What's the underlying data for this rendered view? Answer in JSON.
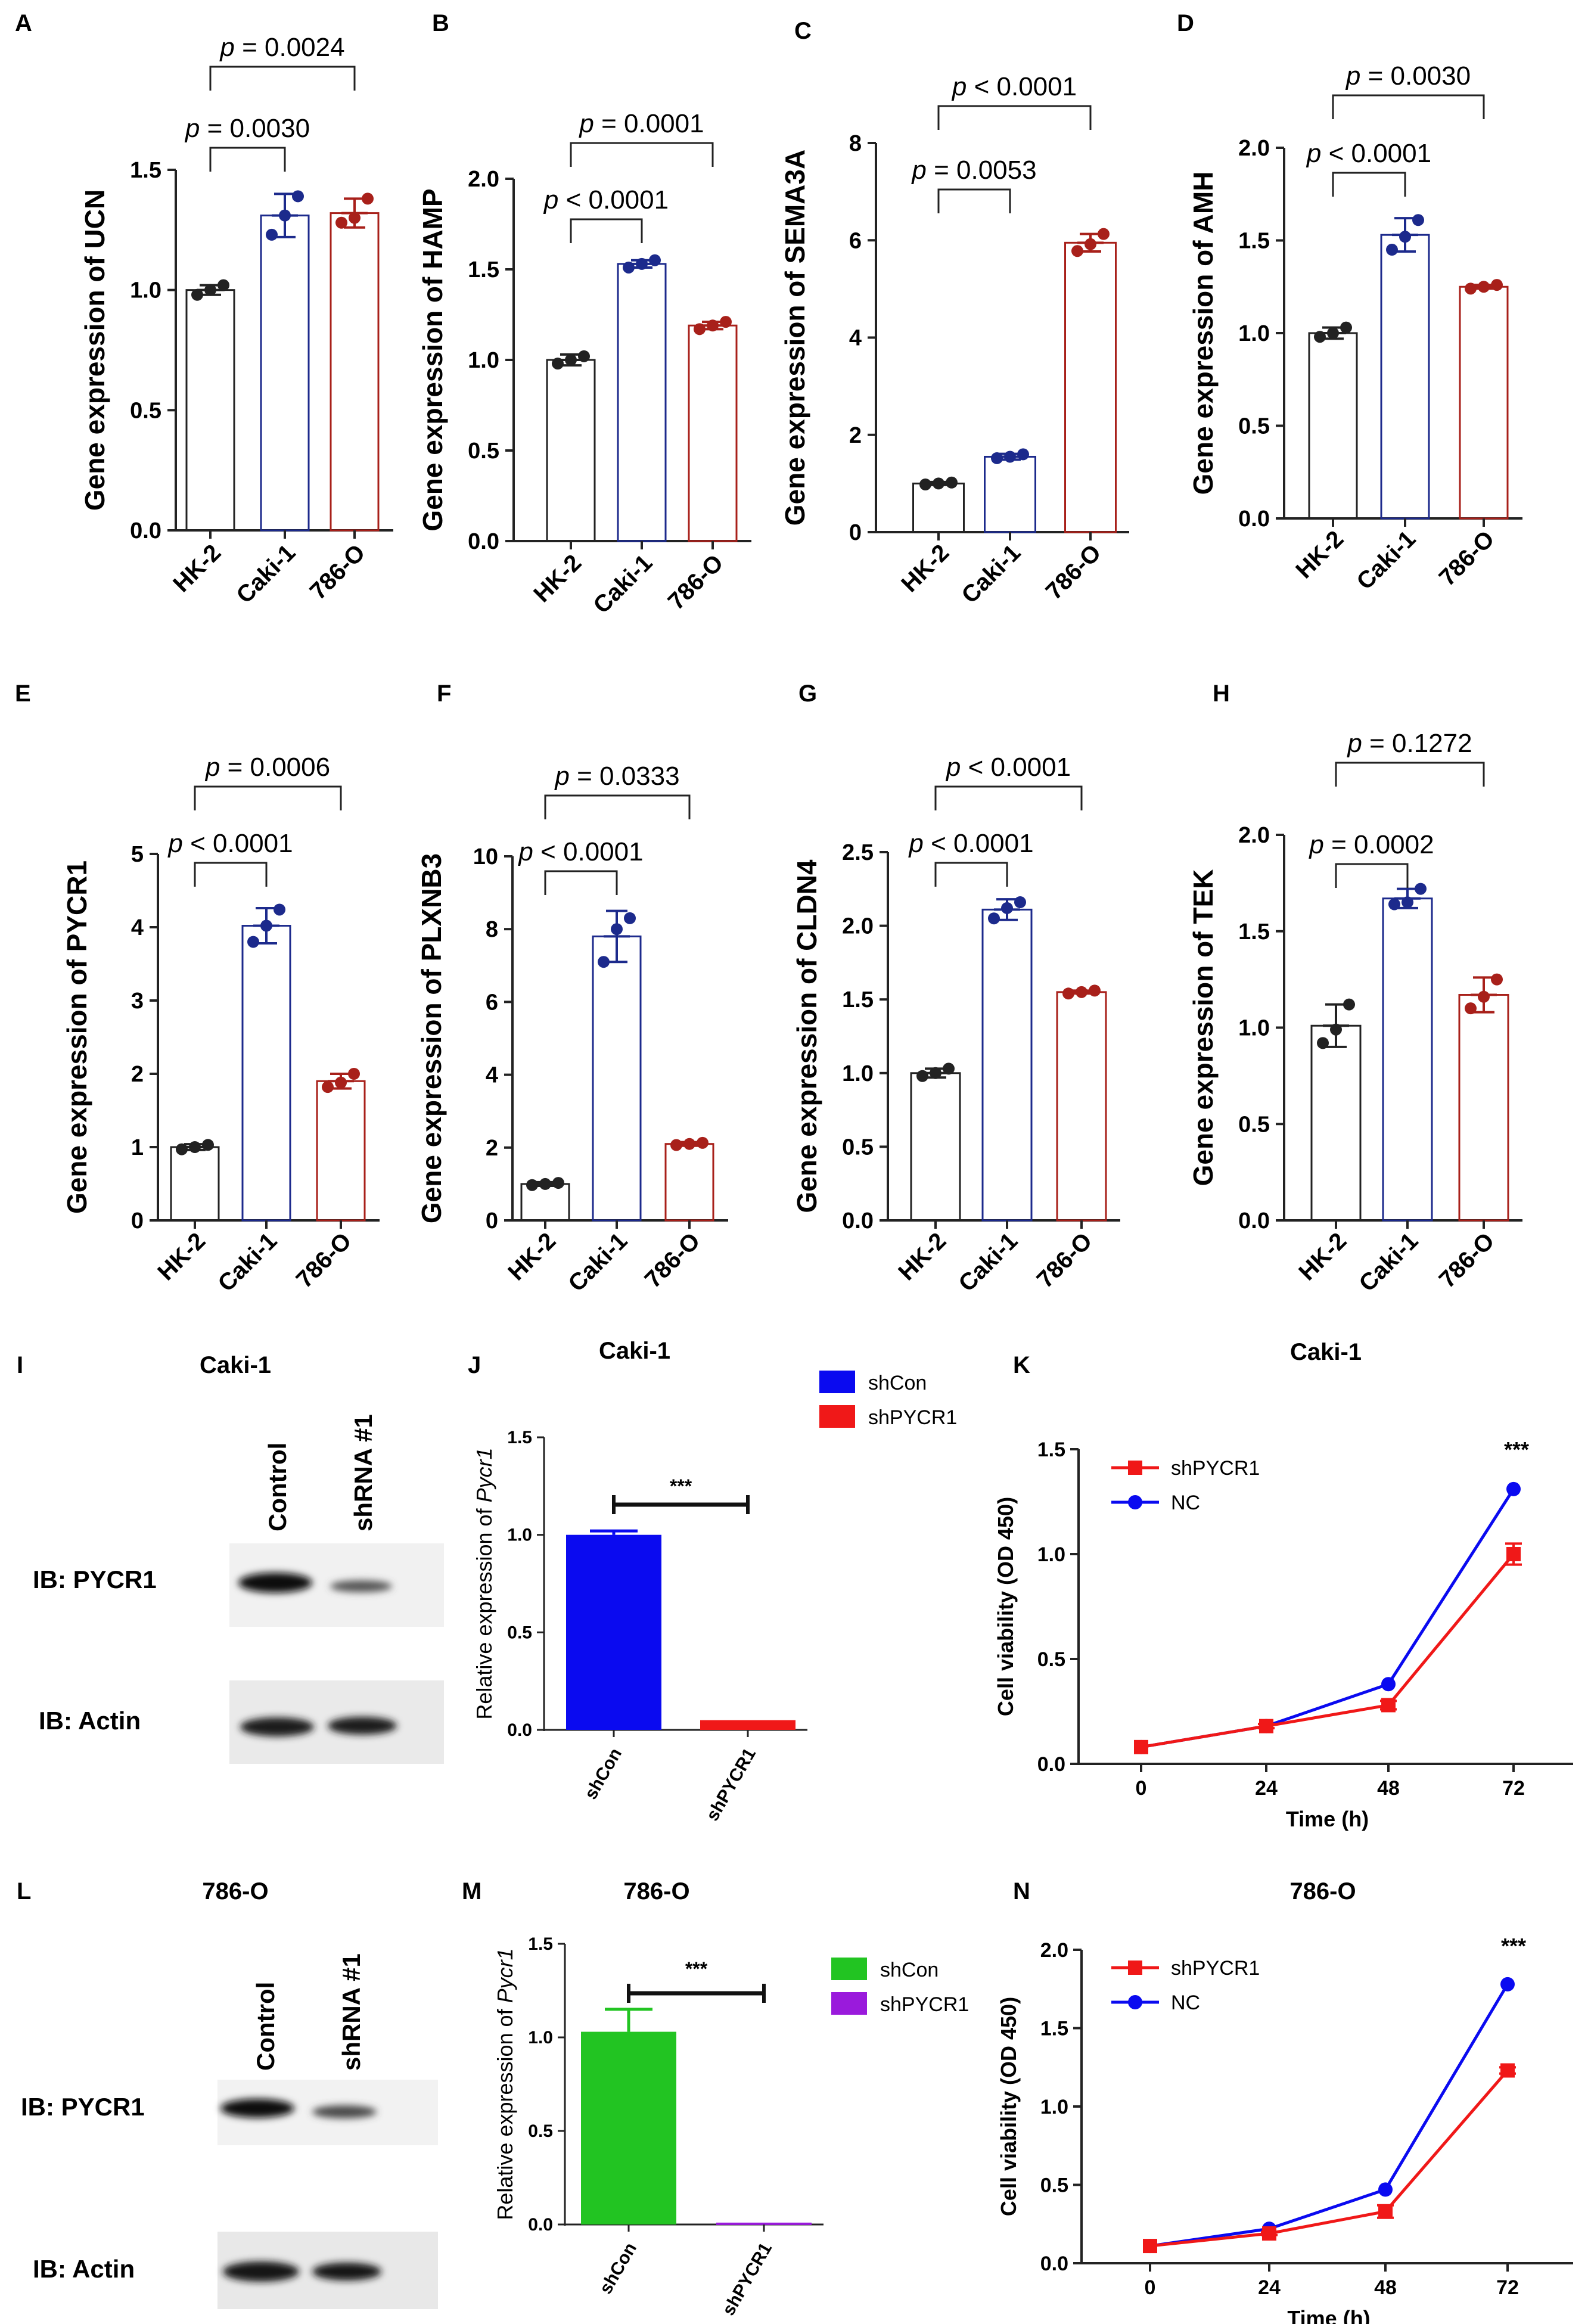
{
  "colors": {
    "HK-2": "#222222",
    "Caki-1": "#1c2a8c",
    "786-O": "#a8201a",
    "blue": "#0a0af0",
    "red": "#f01818",
    "green": "#22c422",
    "purple": "#9a1adc"
  },
  "bar_groups": [
    "HK-2",
    "Caki-1",
    "786-O"
  ],
  "chart_data": [
    {
      "panel": "A",
      "type": "bar",
      "ylabel": "Gene expression of UCN",
      "categories": [
        "HK-2",
        "Caki-1",
        "786-O"
      ],
      "values": [
        1.0,
        1.31,
        1.32
      ],
      "errors": [
        0.02,
        0.09,
        0.06
      ],
      "points": [
        [
          0.98,
          1.0,
          1.02
        ],
        [
          1.23,
          1.31,
          1.39
        ],
        [
          1.28,
          1.3,
          1.38
        ]
      ],
      "ylim": [
        0,
        1.5
      ],
      "yticks": [
        0.0,
        0.5,
        1.0,
        1.5
      ],
      "tick_labels": [
        "0.0",
        "0.5",
        "1.0",
        "1.5"
      ],
      "comparisons": [
        {
          "groups": [
            0,
            1
          ],
          "p_label": "p",
          "p_value": "= 0.0030"
        },
        {
          "groups": [
            0,
            2
          ],
          "p_label": "p",
          "p_value": "= 0.0024"
        }
      ]
    },
    {
      "panel": "B",
      "type": "bar",
      "ylabel": "Gene expression of HAMP",
      "categories": [
        "HK-2",
        "Caki-1",
        "786-O"
      ],
      "values": [
        1.0,
        1.53,
        1.19
      ],
      "errors": [
        0.03,
        0.02,
        0.02
      ],
      "points": [
        [
          0.98,
          1.0,
          1.02
        ],
        [
          1.51,
          1.53,
          1.55
        ],
        [
          1.17,
          1.19,
          1.21
        ]
      ],
      "ylim": [
        0,
        2.0
      ],
      "yticks": [
        0.0,
        0.5,
        1.0,
        1.5,
        2.0
      ],
      "tick_labels": [
        "0.0",
        "0.5",
        "1.0",
        "1.5",
        "2.0"
      ],
      "comparisons": [
        {
          "groups": [
            0,
            1
          ],
          "p_label": "p",
          "p_value": "< 0.0001"
        },
        {
          "groups": [
            0,
            2
          ],
          "p_label": "p",
          "p_value": "= 0.0001"
        }
      ]
    },
    {
      "panel": "C",
      "type": "bar",
      "ylabel": "Gene expression of SEMA3A",
      "categories": [
        "HK-2",
        "Caki-1",
        "786-O"
      ],
      "values": [
        1.0,
        1.55,
        5.95
      ],
      "errors": [
        0.03,
        0.06,
        0.18
      ],
      "points": [
        [
          0.98,
          1.0,
          1.02
        ],
        [
          1.52,
          1.55,
          1.6
        ],
        [
          5.78,
          5.92,
          6.13
        ]
      ],
      "ylim": [
        0,
        8
      ],
      "yticks": [
        0,
        2,
        4,
        6,
        8
      ],
      "tick_labels": [
        "0",
        "2",
        "4",
        "6",
        "8"
      ],
      "comparisons": [
        {
          "groups": [
            0,
            1
          ],
          "p_label": "p",
          "p_value": "= 0.0053"
        },
        {
          "groups": [
            0,
            2
          ],
          "p_label": "p",
          "p_value": "< 0.0001"
        }
      ]
    },
    {
      "panel": "D",
      "type": "bar",
      "ylabel": "Gene expression of AMH",
      "categories": [
        "HK-2",
        "Caki-1",
        "786-O"
      ],
      "values": [
        1.0,
        1.53,
        1.25
      ],
      "errors": [
        0.03,
        0.09,
        0.01
      ],
      "points": [
        [
          0.98,
          1.0,
          1.03
        ],
        [
          1.45,
          1.52,
          1.61
        ],
        [
          1.24,
          1.25,
          1.26
        ]
      ],
      "ylim": [
        0,
        2.0
      ],
      "yticks": [
        0.0,
        0.5,
        1.0,
        1.5,
        2.0
      ],
      "tick_labels": [
        "0.0",
        "0.5",
        "1.0",
        "1.5",
        "2.0"
      ],
      "comparisons": [
        {
          "groups": [
            0,
            1
          ],
          "p_label": "p",
          "p_value": "< 0.0001"
        },
        {
          "groups": [
            0,
            2
          ],
          "p_label": "p",
          "p_value": "= 0.0030"
        }
      ]
    },
    {
      "panel": "E",
      "type": "bar",
      "ylabel": "Gene expression of PYCR1",
      "categories": [
        "HK-2",
        "Caki-1",
        "786-O"
      ],
      "values": [
        1.0,
        4.02,
        1.9
      ],
      "errors": [
        0.04,
        0.24,
        0.1
      ],
      "points": [
        [
          0.97,
          1.0,
          1.03
        ],
        [
          3.8,
          4.02,
          4.24
        ],
        [
          1.82,
          1.88,
          2.0
        ]
      ],
      "ylim": [
        0,
        5
      ],
      "yticks": [
        0,
        1,
        2,
        3,
        4,
        5
      ],
      "tick_labels": [
        "0",
        "1",
        "2",
        "3",
        "4",
        "5"
      ],
      "comparisons": [
        {
          "groups": [
            0,
            1
          ],
          "p_label": "p",
          "p_value": "< 0.0001"
        },
        {
          "groups": [
            0,
            2
          ],
          "p_label": "p",
          "p_value": "= 0.0006"
        }
      ]
    },
    {
      "panel": "F",
      "type": "bar",
      "ylabel": "Gene expression of PLXNB3",
      "categories": [
        "HK-2",
        "Caki-1",
        "786-O"
      ],
      "values": [
        1.0,
        7.8,
        2.1
      ],
      "errors": [
        0.05,
        0.7,
        0.05
      ],
      "points": [
        [
          0.97,
          1.0,
          1.03
        ],
        [
          7.1,
          8.0,
          8.3
        ],
        [
          2.07,
          2.1,
          2.13
        ]
      ],
      "ylim": [
        0,
        10
      ],
      "yticks": [
        0,
        2,
        4,
        6,
        8,
        10
      ],
      "tick_labels": [
        "0",
        "2",
        "4",
        "6",
        "8",
        "10"
      ],
      "comparisons": [
        {
          "groups": [
            0,
            1
          ],
          "p_label": "p",
          "p_value": "< 0.0001"
        },
        {
          "groups": [
            0,
            2
          ],
          "p_label": "p",
          "p_value": "= 0.0333"
        }
      ]
    },
    {
      "panel": "G",
      "type": "bar",
      "ylabel": "Gene expression of CLDN4",
      "categories": [
        "HK-2",
        "Caki-1",
        "786-O"
      ],
      "values": [
        1.0,
        2.11,
        1.55
      ],
      "errors": [
        0.03,
        0.07,
        0.01
      ],
      "points": [
        [
          0.98,
          1.0,
          1.03
        ],
        [
          2.05,
          2.12,
          2.16
        ],
        [
          1.54,
          1.55,
          1.56
        ]
      ],
      "ylim": [
        0,
        2.5
      ],
      "yticks": [
        0.0,
        0.5,
        1.0,
        1.5,
        2.0,
        2.5
      ],
      "tick_labels": [
        "0.0",
        "0.5",
        "1.0",
        "1.5",
        "2.0",
        "2.5"
      ],
      "comparisons": [
        {
          "groups": [
            0,
            1
          ],
          "p_label": "p",
          "p_value": "< 0.0001"
        },
        {
          "groups": [
            0,
            2
          ],
          "p_label": "p",
          "p_value": "< 0.0001"
        }
      ]
    },
    {
      "panel": "H",
      "type": "bar",
      "ylabel": "Gene expression of TEK",
      "categories": [
        "HK-2",
        "Caki-1",
        "786-O"
      ],
      "values": [
        1.01,
        1.67,
        1.17
      ],
      "errors": [
        0.11,
        0.05,
        0.09
      ],
      "points": [
        [
          0.92,
          0.99,
          1.12
        ],
        [
          1.64,
          1.65,
          1.72
        ],
        [
          1.1,
          1.16,
          1.25
        ]
      ],
      "ylim": [
        0,
        2.0
      ],
      "yticks": [
        0.0,
        0.5,
        1.0,
        1.5,
        2.0
      ],
      "tick_labels": [
        "0.0",
        "0.5",
        "1.0",
        "1.5",
        "2.0"
      ],
      "comparisons": [
        {
          "groups": [
            0,
            1
          ],
          "p_label": "p",
          "p_value": "= 0.0002"
        },
        {
          "groups": [
            0,
            2
          ],
          "p_label": "p",
          "p_value": "= 0.1272"
        }
      ]
    },
    {
      "panel": "J",
      "type": "bar",
      "title": "Caki-1",
      "ylabel_pre": "Relative expression of ",
      "ylabel_gene": "Pycr1",
      "categories": [
        "shCon",
        "shPYCR1"
      ],
      "values": [
        1.0,
        0.05
      ],
      "errors": [
        0.02,
        0.0
      ],
      "ylim": [
        0,
        1.5
      ],
      "yticks": [
        0.0,
        0.5,
        1.0,
        1.5
      ],
      "tick_labels": [
        "0.0",
        "0.5",
        "1.0",
        "1.5"
      ],
      "legend": [
        "shCon",
        "shPYCR1"
      ],
      "significance": "***"
    },
    {
      "panel": "M",
      "type": "bar",
      "title": "786-O",
      "ylabel_pre": "Relative expression of ",
      "ylabel_gene": "Pycr1",
      "categories": [
        "shCon",
        "shPYCR1"
      ],
      "values": [
        1.03,
        0.01
      ],
      "errors": [
        0.12,
        0.0
      ],
      "ylim": [
        0,
        1.5
      ],
      "yticks": [
        0.0,
        0.5,
        1.0,
        1.5
      ],
      "tick_labels": [
        "0.0",
        "0.5",
        "1.0",
        "1.5"
      ],
      "legend": [
        "shCon",
        "shPYCR1"
      ],
      "significance": "***"
    },
    {
      "panel": "K",
      "type": "line",
      "title": "Caki-1",
      "xlabel": "Time (h)",
      "ylabel": "Cell viability (OD 450)",
      "x": [
        0,
        24,
        48,
        72
      ],
      "xtick_labels": [
        "0",
        "24",
        "48",
        "72"
      ],
      "series": [
        {
          "name": "shPYCR1",
          "values": [
            0.08,
            0.18,
            0.28,
            1.0
          ],
          "errors": [
            0.0,
            0.01,
            0.02,
            0.05
          ]
        },
        {
          "name": "NC",
          "values": [
            0.08,
            0.18,
            0.38,
            1.31
          ],
          "errors": [
            0,
            0,
            0,
            0
          ]
        }
      ],
      "ylim": [
        0,
        1.5
      ],
      "yticks": [
        0.0,
        0.5,
        1.0,
        1.5
      ],
      "tick_labels": [
        "0.0",
        "0.5",
        "1.0",
        "1.5"
      ],
      "significance": "***"
    },
    {
      "panel": "N",
      "type": "line",
      "title": "786-O",
      "xlabel": "Time (h)",
      "ylabel": "Cell viability (OD 450)",
      "x": [
        0,
        24,
        48,
        72
      ],
      "xtick_labels": [
        "0",
        "24",
        "48",
        "72"
      ],
      "series": [
        {
          "name": "shPYCR1",
          "values": [
            0.11,
            0.19,
            0.33,
            1.23
          ],
          "errors": [
            0.0,
            0.01,
            0.04,
            0.02
          ]
        },
        {
          "name": "NC",
          "values": [
            0.11,
            0.22,
            0.47,
            1.78
          ],
          "errors": [
            0,
            0,
            0,
            0
          ]
        }
      ],
      "ylim": [
        0,
        2.0
      ],
      "yticks": [
        0.0,
        0.5,
        1.0,
        1.5,
        2.0
      ],
      "tick_labels": [
        "0.0",
        "0.5",
        "1.0",
        "1.5",
        "2.0"
      ],
      "significance": "***"
    }
  ],
  "blots": [
    {
      "panel": "I",
      "title": "Caki-1",
      "lanes": [
        "Control",
        "shRNA #1"
      ],
      "rows": [
        "IB: PYCR1",
        "IB: Actin"
      ]
    },
    {
      "panel": "L",
      "title": "786-O",
      "lanes": [
        "Control",
        "shRNA #1"
      ],
      "rows": [
        "IB: PYCR1",
        "IB: Actin"
      ]
    }
  ]
}
